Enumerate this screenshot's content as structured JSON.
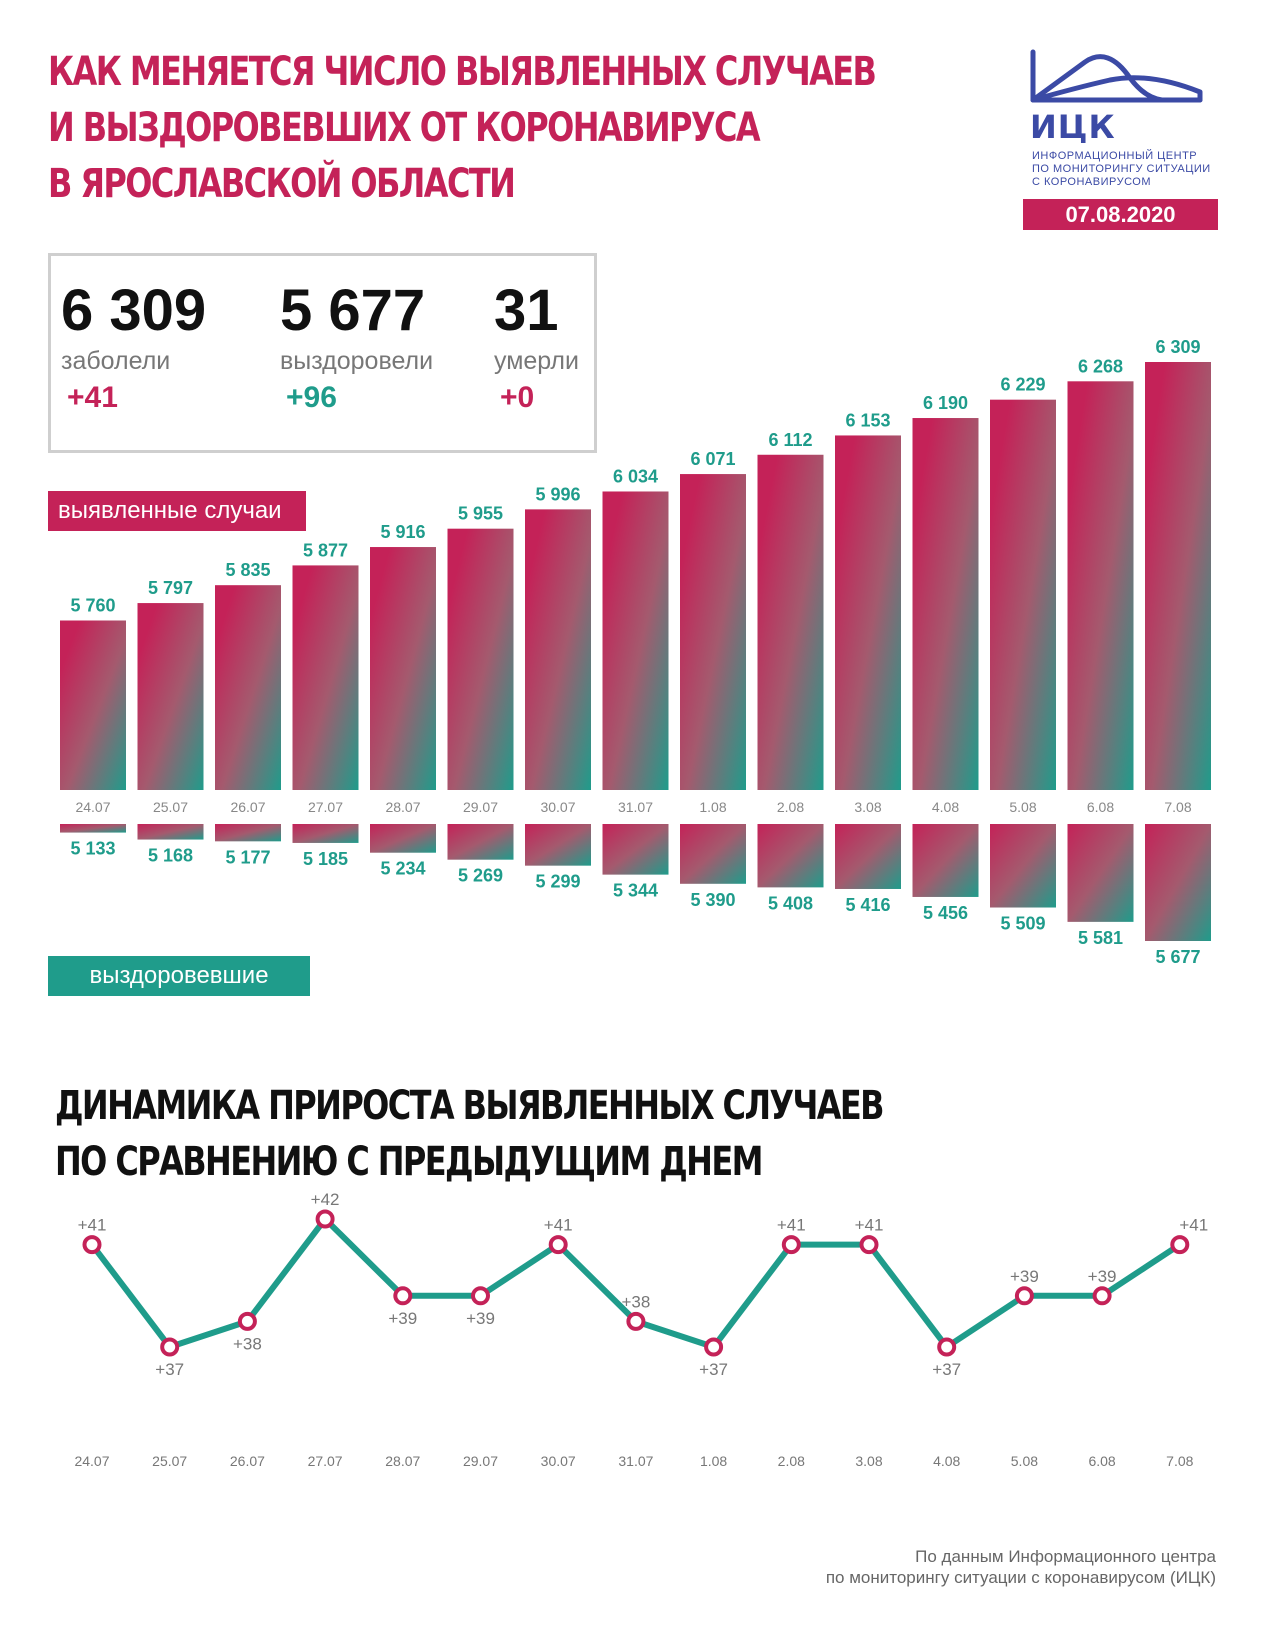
{
  "title": {
    "line1": "Как меняется число выявленных случаев",
    "line2": "и выздоровевших от коронавируса",
    "line3": "в Ярославской области"
  },
  "logo": {
    "abbr": "ИЦК",
    "line1": "Информационный центр",
    "line2": "по мониторингу ситуации",
    "line3": "с коронавирусом",
    "color": "#3b4aa5"
  },
  "date": "07.08.2020",
  "stats": {
    "cases": {
      "value": "6 309",
      "label": "заболели",
      "delta": "+41"
    },
    "recovered": {
      "value": "5 677",
      "label": "выздоровели",
      "delta": "+96"
    },
    "deaths": {
      "value": "31",
      "label": "умерли",
      "delta": "+0"
    }
  },
  "tags": {
    "cases": "выявленные случаи",
    "recovered": "выздоровевшие"
  },
  "colors": {
    "red": "#c42258",
    "green": "#1f9c8b"
  },
  "section2": {
    "line1": "Динамика прироста выявленных случаев",
    "line2": "по сравнению с предыдущим днем"
  },
  "footer": {
    "line1": "По данным Информационного центра",
    "line2": "по мониторингу ситуации с коронавирусом (ИЦК)"
  },
  "chart_data": [
    {
      "type": "bar",
      "categories": [
        "24.07",
        "25.07",
        "26.07",
        "27.07",
        "28.07",
        "29.07",
        "30.07",
        "31.07",
        "1.08",
        "2.08",
        "3.08",
        "4.08",
        "5.08",
        "6.08",
        "7.08"
      ],
      "series": [
        {
          "name": "выявленные случаи",
          "values": [
            5760,
            5797,
            5835,
            5877,
            5916,
            5955,
            5996,
            6034,
            6071,
            6112,
            6153,
            6190,
            6229,
            6268,
            6309
          ],
          "labels": [
            "5 760",
            "5 797",
            "5 835",
            "5 877",
            "5 916",
            "5 955",
            "5 996",
            "6 034",
            "6 071",
            "6 112",
            "6 153",
            "6 190",
            "6 229",
            "6 268",
            "6 309"
          ]
        },
        {
          "name": "выздоровевшие",
          "values": [
            5133,
            5168,
            5177,
            5185,
            5234,
            5269,
            5299,
            5344,
            5390,
            5408,
            5416,
            5456,
            5509,
            5581,
            5677
          ],
          "labels": [
            "5 133",
            "5 168",
            "5 177",
            "5 185",
            "5 234",
            "5 269",
            "5 299",
            "5 344",
            "5 390",
            "5 408",
            "5 416",
            "5 456",
            "5 509",
            "5 581",
            "5 677"
          ]
        }
      ]
    },
    {
      "type": "line",
      "categories": [
        "24.07",
        "25.07",
        "26.07",
        "27.07",
        "28.07",
        "29.07",
        "30.07",
        "31.07",
        "1.08",
        "2.08",
        "3.08",
        "4.08",
        "5.08",
        "6.08",
        "7.08"
      ],
      "values": [
        41,
        37,
        38,
        42,
        39,
        39,
        41,
        38,
        37,
        41,
        41,
        37,
        39,
        39,
        41
      ],
      "labels": [
        "+41",
        "+37",
        "+38",
        "+42",
        "+39",
        "+39",
        "+41",
        "+38",
        "+37",
        "+41",
        "+41",
        "+37",
        "+39",
        "+39",
        "+41"
      ],
      "label_positions": [
        "above",
        "below",
        "below",
        "above",
        "below",
        "below",
        "above",
        "above",
        "below",
        "above",
        "above",
        "below",
        "above",
        "above",
        "above"
      ]
    }
  ]
}
